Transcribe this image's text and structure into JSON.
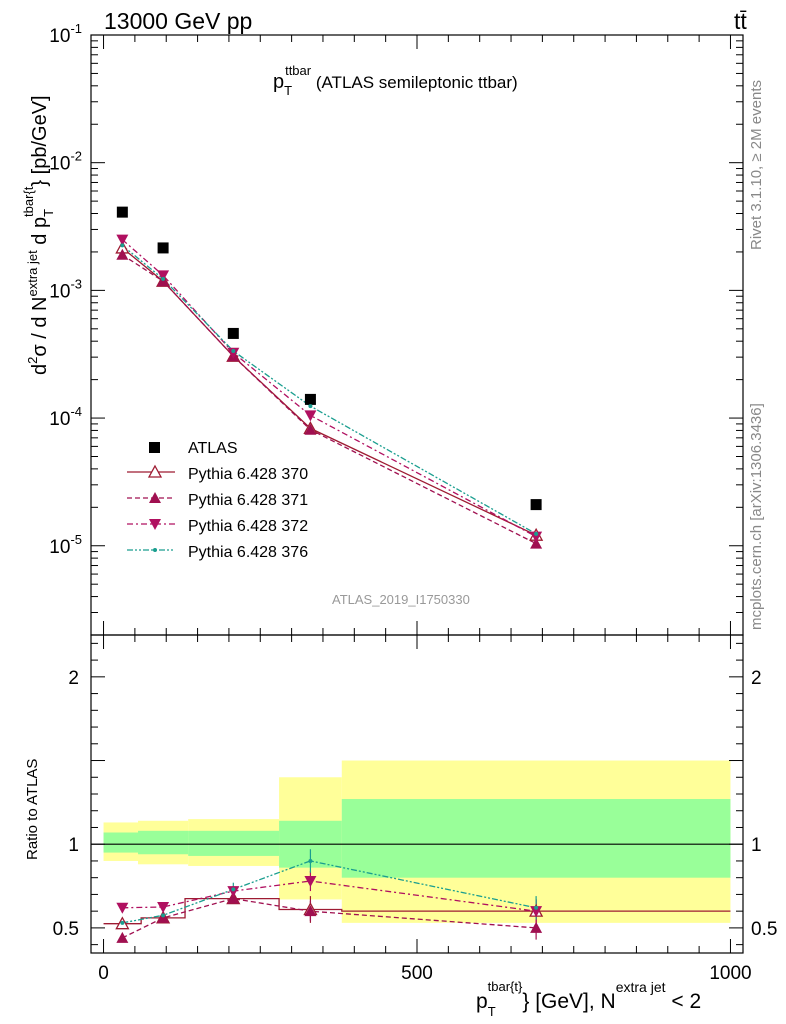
{
  "header": {
    "left": "13000 GeV pp",
    "right": "tt̄"
  },
  "side_labels": {
    "rivet": "Rivet 3.1.10, ≥ 2M events",
    "mcplots": "mcplots.cern.ch [arXiv:1306.3436]"
  },
  "analysis_id": "ATLAS_2019_I1750330",
  "chart_data": [
    {
      "type": "scatter",
      "panel": "main",
      "title": {
        "main": "p",
        "sub": "T",
        "sup": "ttbar",
        "rest": " (ATLAS semileptonic ttbar)"
      },
      "ylabel": {
        "lead": "d",
        "lead_sup": "2",
        "sigma": "σ  /  d N",
        "n_sup": "extra jet",
        "dp": " d p",
        "dp_sub": "T",
        "dp_sup": "tbar{t",
        "unit": "} [pb/GeV]"
      },
      "yscale": "log",
      "ylim": [
        2e-06,
        0.1
      ],
      "xlim": [
        -20,
        1020
      ],
      "y_ticks": [
        {
          "value": 0.1,
          "base": "10",
          "exp": "-1"
        },
        {
          "value": 0.01,
          "base": "10",
          "exp": "-2"
        },
        {
          "value": 0.001,
          "base": "10",
          "exp": "-3"
        },
        {
          "value": 0.0001,
          "base": "10",
          "exp": "-4"
        },
        {
          "value": 1e-05,
          "base": "10",
          "exp": "-5"
        }
      ],
      "legend_position": "bottom-left",
      "series": [
        {
          "name": "ATLAS",
          "key": "data",
          "color": "#000000",
          "marker": "square",
          "line": "none",
          "x": [
            30,
            95,
            207,
            330,
            690
          ],
          "y": [
            0.0041,
            0.00215,
            0.00046,
            0.00014,
            2.1e-05
          ]
        },
        {
          "name": "Pythia 6.428 370",
          "key": "p370",
          "color": "#9e1b32",
          "marker": "triangle-open",
          "line": "solid",
          "x": [
            30,
            95,
            207,
            330,
            690
          ],
          "y": [
            0.00215,
            0.00118,
            0.000305,
            8.3e-05,
            1.21e-05
          ]
        },
        {
          "name": "Pythia 6.428 371",
          "key": "p371",
          "color": "#a01050",
          "marker": "triangle-up",
          "line": "dashed",
          "x": [
            30,
            95,
            207,
            330,
            690
          ],
          "y": [
            0.0019,
            0.00118,
            0.000305,
            8.1e-05,
            1.04e-05
          ]
        },
        {
          "name": "Pythia 6.428 372",
          "key": "p372",
          "color": "#b01060",
          "marker": "triangle-down",
          "line": "dashdot",
          "x": [
            30,
            95,
            207,
            330,
            690
          ],
          "y": [
            0.0025,
            0.00131,
            0.000325,
            0.000105,
            1.18e-05
          ]
        },
        {
          "name": "Pythia 6.428 376",
          "key": "p376",
          "color": "#1a9e8f",
          "marker": "dot",
          "line": "dashdotdot",
          "x": [
            30,
            95,
            207,
            330,
            690
          ],
          "y": [
            0.00225,
            0.00123,
            0.000335,
            0.000124,
            1.24e-05
          ]
        }
      ]
    },
    {
      "type": "scatter",
      "panel": "ratio",
      "ylabel": "Ratio to ATLAS",
      "xlabel": {
        "p": "p",
        "sub": "T",
        "sup": "tbar{t}",
        "rest": "} [GeV], N",
        "n_sup": "extra jet",
        "tail": " < 2"
      },
      "ylim": [
        0.35,
        2.25
      ],
      "xlim": [
        -20,
        1020
      ],
      "x_ticks": [
        {
          "value": 0,
          "label": "0"
        },
        {
          "value": 500,
          "label": "500"
        },
        {
          "value": 1000,
          "label": "1000"
        }
      ],
      "y_ticks": [
        {
          "value": 0.5,
          "label": "0.5"
        },
        {
          "value": 1,
          "label": "1"
        },
        {
          "value": 2,
          "label": "2"
        }
      ],
      "bands": [
        {
          "x0": 0,
          "x1": 55,
          "inner": [
            0.95,
            1.07
          ],
          "outer": [
            0.9,
            1.13
          ]
        },
        {
          "x0": 55,
          "x1": 135,
          "inner": [
            0.94,
            1.08
          ],
          "outer": [
            0.88,
            1.14
          ]
        },
        {
          "x0": 135,
          "x1": 280,
          "inner": [
            0.93,
            1.08
          ],
          "outer": [
            0.87,
            1.15
          ]
        },
        {
          "x0": 280,
          "x1": 380,
          "inner": [
            0.86,
            1.14
          ],
          "outer": [
            0.67,
            1.4
          ]
        },
        {
          "x0": 380,
          "x1": 1000,
          "inner": [
            0.8,
            1.27
          ],
          "outer": [
            0.53,
            1.5
          ]
        }
      ],
      "series": [
        {
          "name": "Pythia 6.428 370",
          "key": "p370",
          "x": [
            30,
            95,
            207,
            330,
            690
          ],
          "y": [
            0.525,
            0.56,
            0.675,
            0.61,
            0.6
          ],
          "err": [
            0.02,
            0.02,
            0.025,
            0.08,
            0.07
          ],
          "hist": [
            0,
            60,
            130,
            280,
            380,
            1000
          ]
        },
        {
          "name": "Pythia 6.428 371",
          "key": "p371",
          "x": [
            30,
            95,
            207,
            330,
            690
          ],
          "y": [
            0.44,
            0.56,
            0.675,
            0.6,
            0.5
          ],
          "err": [
            0.0,
            0.02,
            0.025,
            0.06,
            0.07
          ]
        },
        {
          "name": "Pythia 6.428 372",
          "key": "p372",
          "x": [
            30,
            95,
            207,
            330,
            690
          ],
          "y": [
            0.62,
            0.625,
            0.72,
            0.78,
            0.6
          ],
          "err": [
            0.0,
            0.0,
            0.03,
            0.06,
            0.07
          ]
        },
        {
          "name": "Pythia 6.428 376",
          "key": "p376",
          "x": [
            30,
            95,
            207,
            330,
            690
          ],
          "y": [
            0.53,
            0.575,
            0.73,
            0.9,
            0.62
          ],
          "err": [
            0.02,
            0.02,
            0.04,
            0.07,
            0.07
          ]
        }
      ]
    }
  ]
}
